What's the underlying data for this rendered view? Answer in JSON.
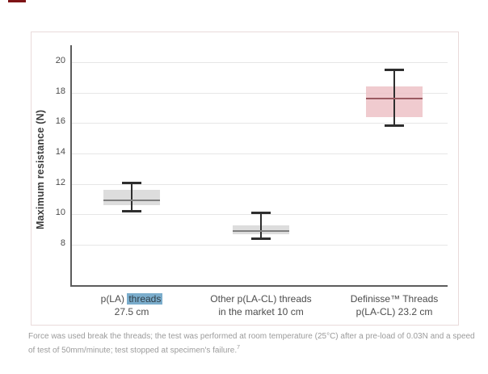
{
  "page": {
    "background": "#ffffff"
  },
  "decor": {
    "top_left_mark_color": "#7e1416"
  },
  "panel": {
    "border_color": "#e9dada"
  },
  "chart_data": {
    "type": "box",
    "title": "",
    "xlabel": "",
    "ylabel": "Maximum resistance (N)",
    "yticks": [
      20,
      18,
      16,
      14,
      12,
      10,
      8
    ],
    "ylim": [
      5.3,
      21.0
    ],
    "grid": true,
    "legend": "none",
    "axis_color": "#5c5c5c",
    "gridline_color": "#e6e6e6",
    "highlight": {
      "background": "#7badcc",
      "text_color": "#2e3d47"
    },
    "categories": [
      {
        "line1_before": "p(LA) ",
        "line1_highlight": "threads",
        "line1_after": "",
        "line2": "27.5 cm"
      },
      {
        "line1_before": "Other p(LA-CL) threads",
        "line1_highlight": "",
        "line1_after": "",
        "line2": "in the market 10 cm"
      },
      {
        "line1_before": "Definisse™ Threads",
        "line1_highlight": "",
        "line1_after": "",
        "line2": "p(LA-CL) 23.2 cm"
      }
    ],
    "series": [
      {
        "name": "p(LA) threads 27.5 cm",
        "whisker_low": 10.2,
        "q1": 10.6,
        "median": 10.9,
        "q3": 11.6,
        "whisker_high": 12.1,
        "box_color": "#d5d5d5",
        "median_color": "#7f7f7f",
        "whisker_color": "#2e2e2e"
      },
      {
        "name": "Other p(LA-CL) threads in the market 10 cm",
        "whisker_low": 8.4,
        "q1": 8.7,
        "median": 8.9,
        "q3": 9.3,
        "whisker_high": 10.1,
        "box_color": "#d5d5d5",
        "median_color": "#7f7f7f",
        "whisker_color": "#2e2e2e"
      },
      {
        "name": "Definisse™ Threads p(LA-CL) 23.2 cm",
        "whisker_low": 15.8,
        "q1": 16.4,
        "median": 17.6,
        "q3": 18.4,
        "whisker_high": 19.5,
        "box_color": "#edc0c5",
        "median_color": "#9b5b61",
        "whisker_color": "#2e2e2e"
      }
    ]
  },
  "footnote": {
    "line1": "Force was used break the threads; the test was performed at room temperature (25°C) after a pre-load of 0.03N and a speed",
    "line2": "of test of 50mm/minute; test stopped at specimen's failure.",
    "reference": "7"
  }
}
